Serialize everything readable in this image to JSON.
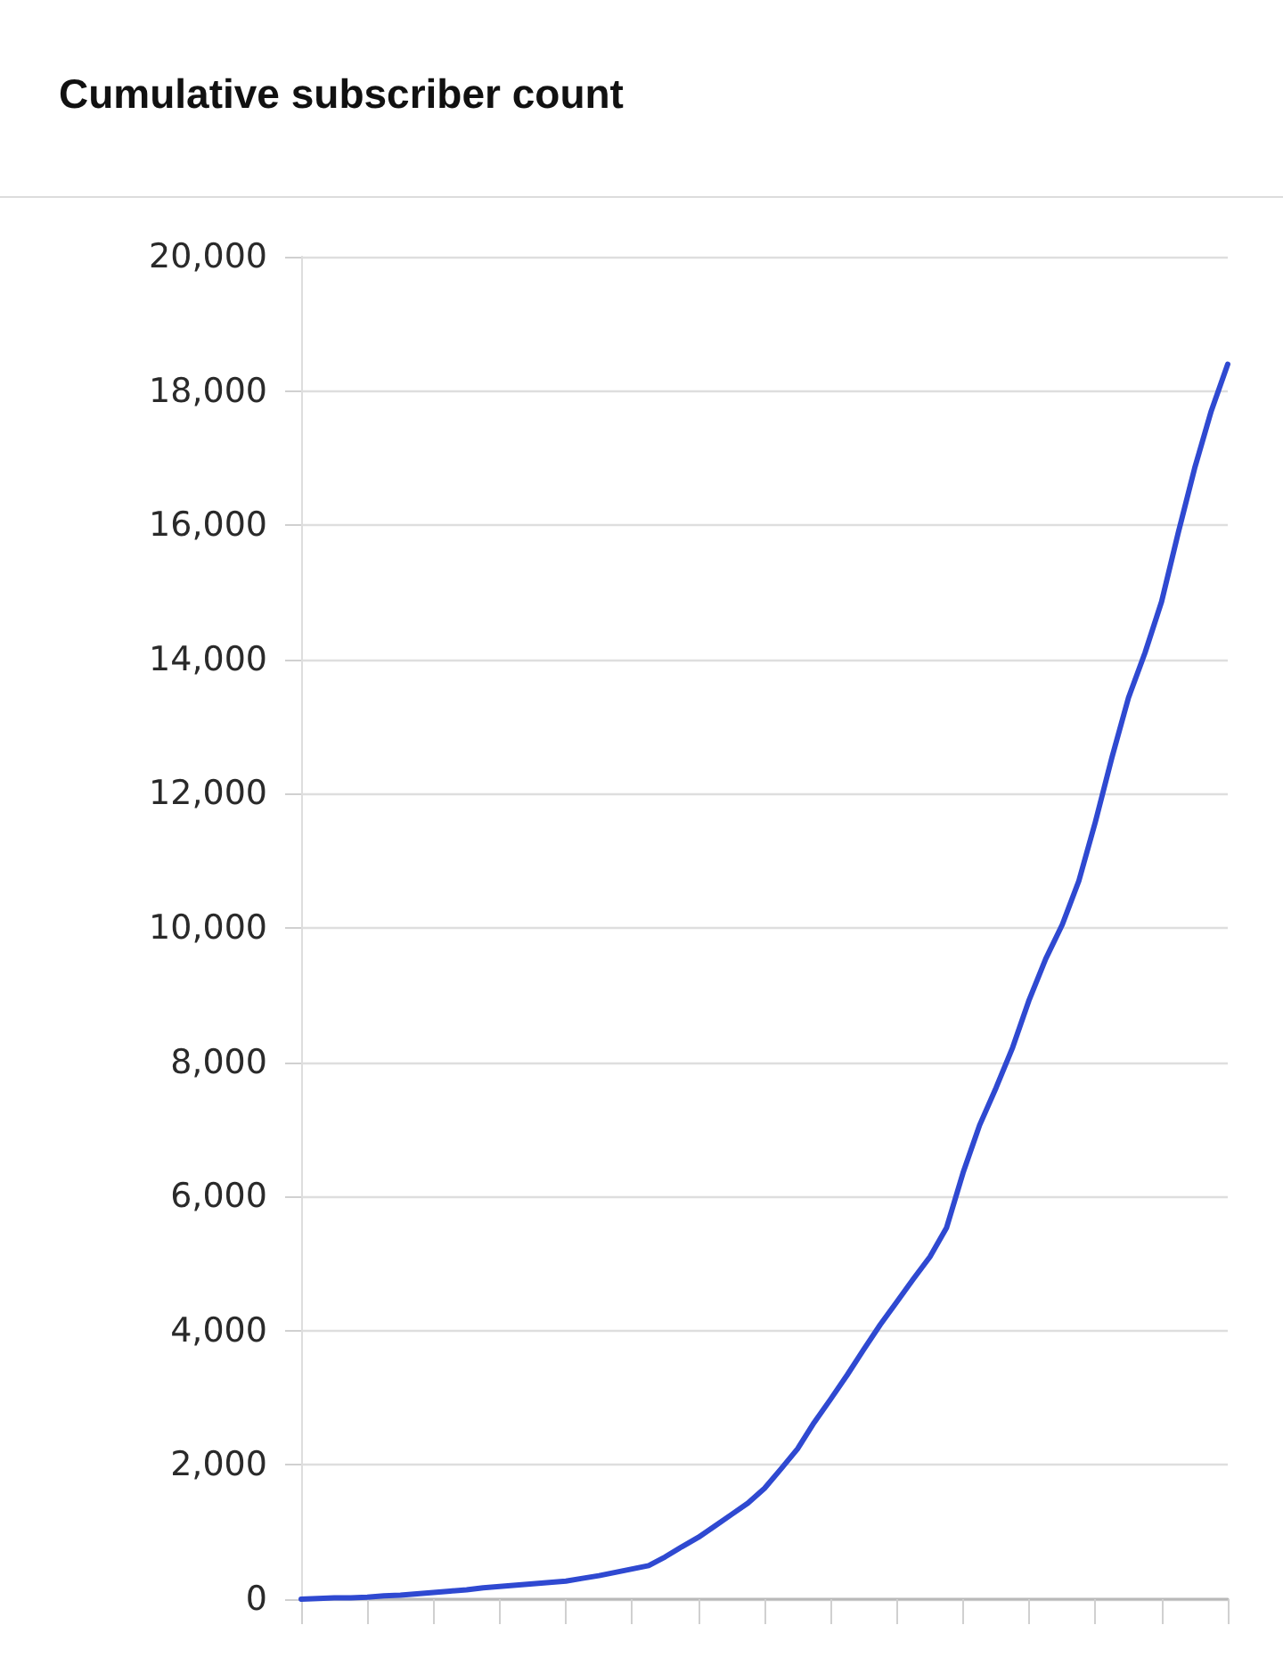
{
  "chart_data": {
    "type": "line",
    "title": "Cumulative subscriber count",
    "categories": [
      null,
      null,
      null,
      null,
      null,
      null,
      null,
      null,
      null,
      null,
      null,
      null,
      null,
      null,
      null,
      null,
      null,
      null,
      null,
      null,
      null,
      null,
      null,
      null,
      null,
      null,
      null,
      null,
      null,
      null,
      null,
      null,
      null,
      null,
      null,
      null,
      null,
      null,
      null,
      null,
      null,
      null,
      null,
      null,
      null,
      null,
      null,
      null,
      null,
      null,
      null,
      null,
      null,
      null,
      null,
      null,
      null
    ],
    "values": [
      0,
      10,
      20,
      20,
      30,
      50,
      60,
      80,
      100,
      120,
      140,
      170,
      190,
      210,
      230,
      250,
      270,
      310,
      350,
      400,
      450,
      500,
      630,
      780,
      920,
      1090,
      1260,
      1430,
      1650,
      1940,
      2240,
      2630,
      2980,
      3340,
      3720,
      4090,
      4430,
      4770,
      5100,
      5530,
      6350,
      7060,
      7620,
      8220,
      8930,
      9540,
      10050,
      10700,
      11580,
      12540,
      13430,
      14100,
      14860,
      15880,
      16850,
      17700,
      18400
    ],
    "color": "#2f49d1",
    "ylim": [
      0,
      20000
    ],
    "yticks": [
      {
        "value": 0,
        "label": "0"
      },
      {
        "value": 2000,
        "label": "2,000"
      },
      {
        "value": 4000,
        "label": "4,000"
      },
      {
        "value": 6000,
        "label": "6,000"
      },
      {
        "value": 8000,
        "label": "8,000"
      },
      {
        "value": 10000,
        "label": "10,000"
      },
      {
        "value": 12000,
        "label": "12,000"
      },
      {
        "value": 14000,
        "label": "14,000"
      },
      {
        "value": 16000,
        "label": "16,000"
      },
      {
        "value": 18000,
        "label": "18,000"
      },
      {
        "value": 20000,
        "label": "20,000"
      }
    ],
    "grid": "y",
    "tick_labels": "y"
  }
}
